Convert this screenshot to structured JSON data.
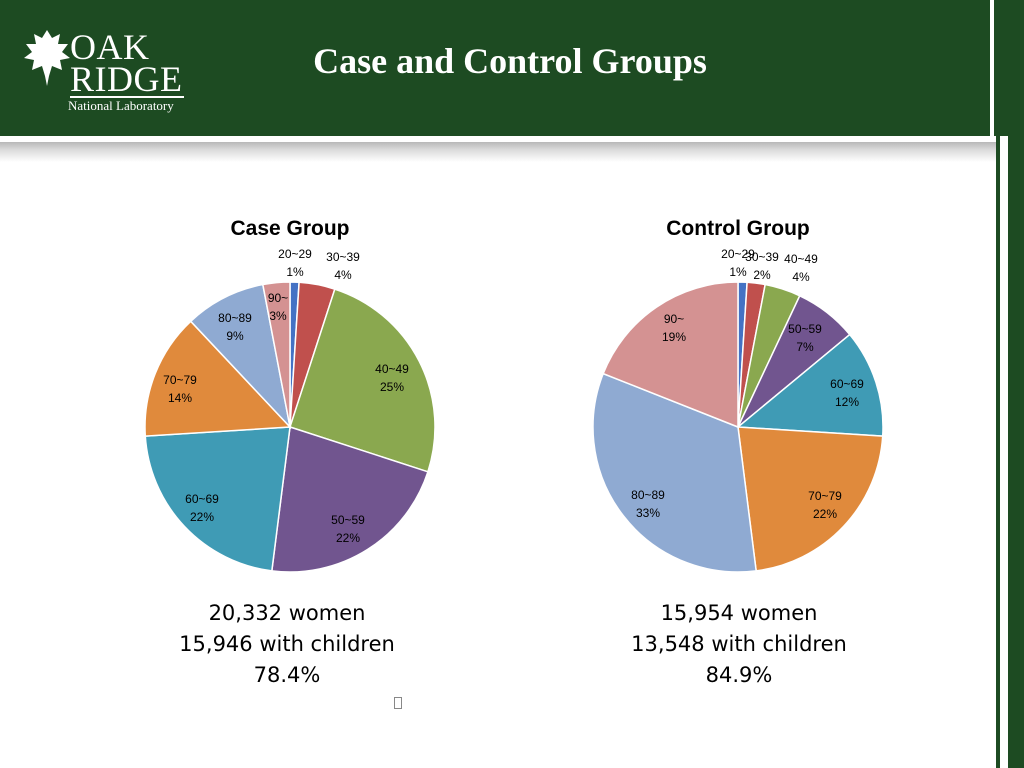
{
  "slide": {
    "title": "Case and Control Groups",
    "logo": {
      "line1": "OAK",
      "line2": "RIDGE",
      "line3": "National Laboratory",
      "icon": "oak-leaf-icon"
    },
    "colors": {
      "header": "#1d4b22",
      "accent": "#ffffff"
    }
  },
  "chart_data": [
    {
      "type": "pie",
      "title": "Case Group",
      "categories": [
        "20~29",
        "30~39",
        "40~49",
        "50~59",
        "60~69",
        "70~79",
        "80~89",
        "90~"
      ],
      "values": [
        1,
        4,
        25,
        22,
        22,
        14,
        9,
        3
      ],
      "labels": [
        "1%",
        "4%",
        "25%",
        "22%",
        "22%",
        "14%",
        "9%",
        "3%"
      ],
      "colors": [
        "#4472c4",
        "#c0504d",
        "#8aa84f",
        "#71558f",
        "#3f9bb5",
        "#e08a3c",
        "#8faad2",
        "#d49292"
      ],
      "legend": "none"
    },
    {
      "type": "pie",
      "title": "Control Group",
      "categories": [
        "20~29",
        "30~39",
        "40~49",
        "50~59",
        "60~69",
        "70~79",
        "80~89",
        "90~"
      ],
      "values": [
        1,
        2,
        4,
        7,
        12,
        22,
        33,
        19
      ],
      "labels": [
        "1%",
        "2%",
        "4%",
        "7%",
        "12%",
        "22%",
        "33%",
        "19%"
      ],
      "colors": [
        "#4472c4",
        "#c0504d",
        "#8aa84f",
        "#71558f",
        "#3f9bb5",
        "#e08a3c",
        "#8faad2",
        "#d49292"
      ],
      "legend": "none"
    }
  ],
  "stats": {
    "case": {
      "women": "20,332 women",
      "children": "15,946 with children",
      "percent": "78.4%"
    },
    "control": {
      "women": "15,954 women",
      "children": "13,548 with children",
      "percent": "84.9%"
    }
  }
}
